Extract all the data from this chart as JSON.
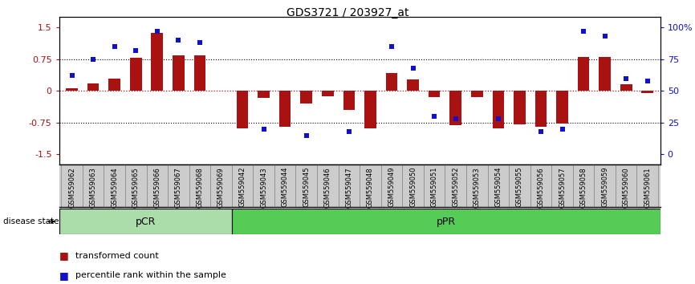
{
  "title": "GDS3721 / 203927_at",
  "samples": [
    "GSM559062",
    "GSM559063",
    "GSM559064",
    "GSM559065",
    "GSM559066",
    "GSM559067",
    "GSM559068",
    "GSM559069",
    "GSM559042",
    "GSM559043",
    "GSM559044",
    "GSM559045",
    "GSM559046",
    "GSM559047",
    "GSM559048",
    "GSM559049",
    "GSM559050",
    "GSM559051",
    "GSM559052",
    "GSM559053",
    "GSM559054",
    "GSM559055",
    "GSM559056",
    "GSM559057",
    "GSM559058",
    "GSM559059",
    "GSM559060",
    "GSM559061"
  ],
  "transformed_count": [
    0.07,
    0.18,
    0.3,
    0.78,
    1.38,
    0.85,
    0.85,
    0.01,
    -0.88,
    -0.17,
    -0.85,
    -0.3,
    -0.12,
    -0.45,
    -0.88,
    0.43,
    0.27,
    -0.15,
    -0.82,
    -0.15,
    -0.88,
    -0.8,
    -0.85,
    -0.78,
    0.8,
    0.8,
    0.15,
    -0.05
  ],
  "percentile_rank": [
    62,
    75,
    85,
    82,
    97,
    90,
    88,
    null,
    null,
    20,
    null,
    15,
    null,
    18,
    null,
    85,
    68,
    30,
    28,
    null,
    28,
    null,
    18,
    20,
    97,
    93,
    60,
    58
  ],
  "pCR_count": 8,
  "pPR_count": 20,
  "bar_color": "#aa1111",
  "dot_color": "#1111cc",
  "pCR_color": "#aaddaa",
  "pPR_color": "#55cc55",
  "tick_bg": "#cccccc",
  "yticks_left": [
    -1.5,
    -0.75,
    0.0,
    0.75,
    1.5
  ],
  "ytick_labels_left": [
    "-1.5",
    "-0.75",
    "0",
    "0.75",
    "1.5"
  ],
  "ytick_pct": [
    0,
    25,
    50,
    75,
    100
  ],
  "ytick_labels_right": [
    "0",
    "25",
    "50",
    "75",
    "100%"
  ],
  "ylim": [
    -1.75,
    1.75
  ]
}
